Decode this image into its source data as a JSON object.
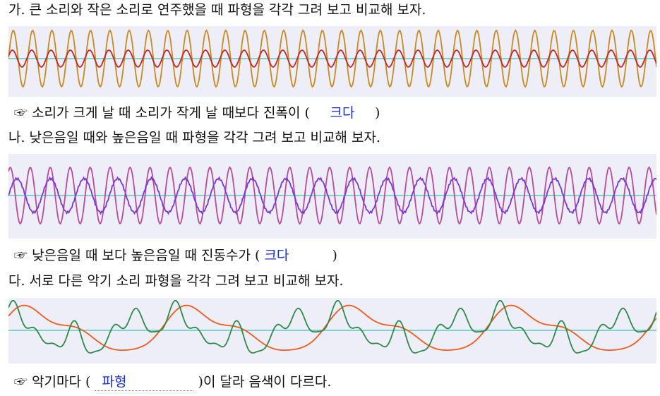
{
  "sections": [
    {
      "heading": "가. 큰 소리와 작은 소리로 연주했을 때 파형을 각각 그려 보고 비교해 보자.",
      "prefix": "☞",
      "before": "소리가 크게 날 때 소리가 작게 날 때보다 진폭이 (",
      "answer": "크다",
      "after": ")"
    },
    {
      "heading": "나. 낮은음일 때와 높은음일 때 파형을 각각 그려 보고 비교해 보자.",
      "prefix": "☞",
      "before": "낮은음일 때 보다 높은음일 때 진동수가 (",
      "answer": "크다",
      "after": ")"
    },
    {
      "heading": "다. 서로 다른 악기 소리 파형을 각각 그려 보고 비교해 보자.",
      "prefix": "☞",
      "before": "악기마다 (",
      "answer": "파형",
      "after": ")이 달라 음색이 다르다."
    }
  ]
}
